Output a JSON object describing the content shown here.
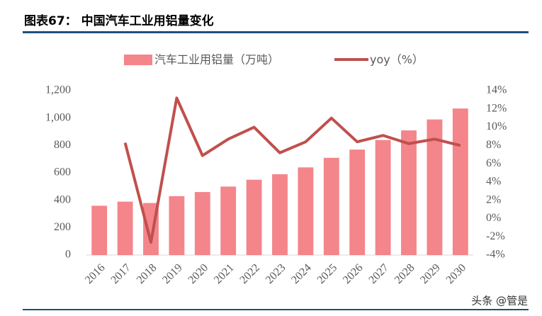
{
  "chart_data": {
    "type": "bar",
    "title": "图表67： 中国汽车工业用铝量变化",
    "categories": [
      "2016",
      "2017",
      "2018",
      "2019",
      "2020",
      "2021",
      "2022",
      "2023",
      "2024",
      "2025",
      "2026",
      "2027",
      "2028",
      "2029",
      "2030"
    ],
    "series": [
      {
        "name": "汽车工业用铝量（万吨）",
        "type": "bar",
        "color": "#f4858a",
        "values": [
          360,
          390,
          380,
          430,
          460,
          500,
          550,
          590,
          640,
          710,
          770,
          840,
          910,
          990,
          1070
        ]
      },
      {
        "name": "yoy（%）",
        "type": "line",
        "axis": "y2",
        "color": "#c0504d",
        "values": [
          null,
          8.3,
          -2.6,
          13.2,
          6.9,
          8.7,
          10.0,
          7.2,
          8.4,
          11.0,
          8.4,
          9.1,
          8.2,
          8.7,
          8.0
        ]
      }
    ],
    "ylim": [
      0,
      1200
    ],
    "yticks": [
      0,
      200,
      400,
      600,
      800,
      {
        "value": 1000,
        "label": "1,000"
      },
      {
        "value": 1200,
        "label": "1,200"
      }
    ],
    "y2lim": [
      -4,
      14
    ],
    "y2ticks": [
      {
        "value": -4,
        "label": "-4%"
      },
      {
        "value": -2,
        "label": "-2%"
      },
      {
        "value": 0,
        "label": "0%"
      },
      {
        "value": 2,
        "label": "2%"
      },
      {
        "value": 4,
        "label": "4%"
      },
      {
        "value": 6,
        "label": "6%"
      },
      {
        "value": 8,
        "label": "8%"
      },
      {
        "value": 10,
        "label": "10%"
      },
      {
        "value": 12,
        "label": "12%"
      },
      {
        "value": 14,
        "label": "14%"
      }
    ],
    "grid": false,
    "watermark": "头条 @管是"
  }
}
